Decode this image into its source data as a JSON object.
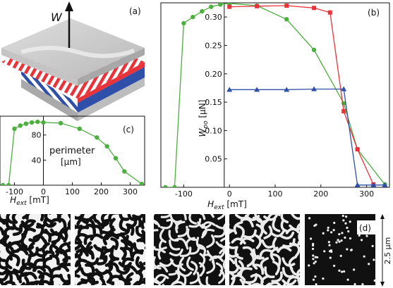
{
  "panels": {
    "a": "(a)",
    "b": "(b)",
    "c": "(c)",
    "d": "(d)"
  },
  "illustration": {
    "arrow_label": "W",
    "colors": {
      "red": "#e8333a",
      "blue": "#2f4fa8",
      "gray": "#c8c8c8"
    }
  },
  "chart_data": [
    {
      "id": "b",
      "type": "line",
      "ylabel": "W_po [μN]",
      "ylabel_main": "W",
      "ylabel_sub": "po",
      "ylabel_unit": " [μN]",
      "xlabel_main": "H",
      "xlabel_sub": "ext",
      "xlabel_unit": " [mT]",
      "xlim": [
        -150,
        350
      ],
      "ylim": [
        0,
        0.325
      ],
      "xticks": [
        "-100",
        "0",
        "100",
        "200",
        "300"
      ],
      "xtick_values": [
        -100,
        0,
        100,
        200,
        300
      ],
      "yticks": [
        "0.05",
        "0.10",
        "0.15",
        "0.20",
        "0.25",
        "0.30"
      ],
      "ytick_values": [
        0.05,
        0.1,
        0.15,
        0.2,
        0.25,
        0.3
      ],
      "series": [
        {
          "color": "#4caf3f",
          "marker": "circle",
          "x": [
            -140,
            -120,
            -100,
            -80,
            -60,
            -40,
            -20,
            0,
            60,
            125,
            185,
            250,
            280,
            340
          ],
          "y": [
            0,
            0,
            0.289,
            0.3,
            0.31,
            0.318,
            0.322,
            0.324,
            0.32,
            0.296,
            0.242,
            0.148,
            0.067,
            0.005
          ]
        },
        {
          "color": "#e8333a",
          "marker": "square",
          "x": [
            0,
            60,
            125,
            185,
            220,
            250,
            280,
            315
          ],
          "y": [
            0.318,
            0.319,
            0.32,
            0.316,
            0.308,
            0.134,
            0.067,
            0.005
          ]
        },
        {
          "color": "#2f4fa8",
          "marker": "triangle",
          "x": [
            0,
            60,
            125,
            185,
            250,
            280,
            315,
            340
          ],
          "y": [
            0.172,
            0.172,
            0.172,
            0.173,
            0.173,
            0.004,
            0.004,
            0.004
          ]
        }
      ]
    },
    {
      "id": "c",
      "type": "line",
      "annotation_lines": [
        "perimeter",
        "[μm]"
      ],
      "xlabel_main": "H",
      "xlabel_sub": "ext",
      "xlabel_unit": " [mT]",
      "xlim": [
        -150,
        350
      ],
      "ylim": [
        0,
        110
      ],
      "xticks": [
        "-100",
        "0",
        "100",
        "200",
        "300"
      ],
      "xtick_values": [
        -100,
        0,
        100,
        200,
        300
      ],
      "yticks": [
        "40",
        "80"
      ],
      "ytick_values": [
        40,
        80
      ],
      "series": [
        {
          "color": "#4caf3f",
          "marker": "circle",
          "x": [
            -140,
            -120,
            -100,
            -80,
            -60,
            -40,
            -20,
            0,
            60,
            125,
            185,
            220,
            250,
            280,
            340
          ],
          "y": [
            0,
            0,
            90,
            95,
            98,
            100,
            101,
            100,
            99,
            90,
            76,
            62,
            43,
            22,
            2
          ]
        }
      ]
    }
  ],
  "images": {
    "scale_label": "2.5 μm",
    "tiles": [
      {
        "kind": "labyrinth-white-thin"
      },
      {
        "kind": "labyrinth-white-thin"
      },
      {
        "kind": "labyrinth-dark-thick"
      },
      {
        "kind": "labyrinth-dark-medium"
      },
      {
        "kind": "bubbles"
      }
    ]
  }
}
